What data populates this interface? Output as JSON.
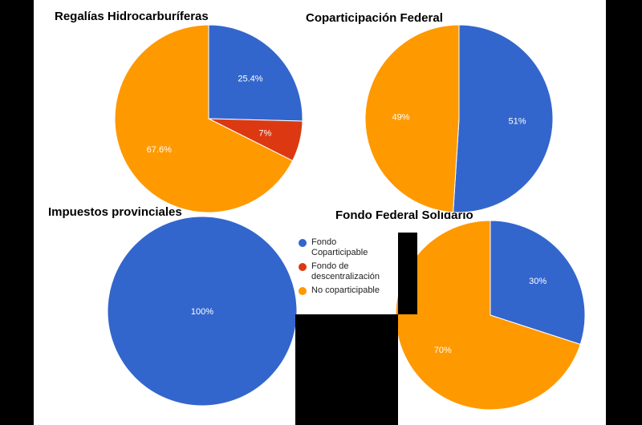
{
  "colors": {
    "fondo_coparticipable": "#3366CC",
    "fondo_descentralizacion": "#DC3912",
    "no_coparticipable": "#FF9900"
  },
  "legend": [
    "Fondo Coparticipable",
    "Fondo de descentralización",
    "No coparticipable"
  ],
  "chart_data": [
    {
      "type": "pie",
      "title": "Regalías Hidrocarburíferas",
      "categories": [
        "Fondo Coparticipable",
        "Fondo de descentralización",
        "No coparticipable"
      ],
      "values": [
        25.4,
        7,
        67.6
      ],
      "labels": [
        "25.4%",
        "7%",
        "67.6%"
      ]
    },
    {
      "type": "pie",
      "title": "Coparticipación Federal",
      "categories": [
        "Fondo Coparticipable",
        "No coparticipable"
      ],
      "values": [
        51,
        49
      ],
      "labels": [
        "51%",
        "49%"
      ]
    },
    {
      "type": "pie",
      "title": "Impuestos provinciales",
      "categories": [
        "Fondo Coparticipable"
      ],
      "values": [
        100
      ],
      "labels": [
        "100%"
      ]
    },
    {
      "type": "pie",
      "title": "Fondo Federal Solidario",
      "categories": [
        "Fondo Coparticipable",
        "No coparticipable"
      ],
      "values": [
        30,
        70
      ],
      "labels": [
        "30%",
        "70%"
      ]
    }
  ]
}
